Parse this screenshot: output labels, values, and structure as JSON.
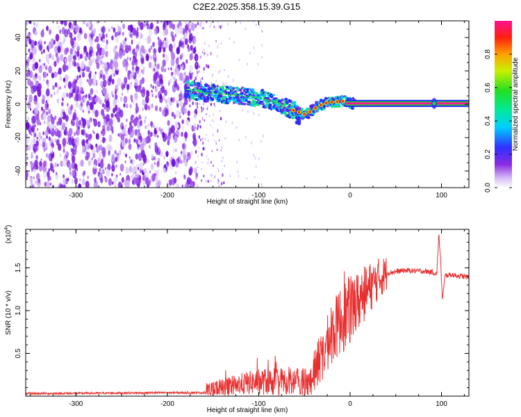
{
  "title": "C2E2.2025.358.15.39.G15",
  "chart_data": [
    {
      "type": "heatmap",
      "xlabel": "Height of straight line (km)",
      "ylabel": "Frequency (Hz)",
      "xlim": [
        -355,
        130
      ],
      "ylim": [
        -50,
        50
      ],
      "xticks": [
        -300,
        -200,
        -100,
        0,
        100
      ],
      "yticks": [
        -40,
        -20,
        0,
        20,
        40
      ],
      "noise_region_x": [
        -355,
        -160
      ],
      "trace": {
        "x": [
          -180,
          -160,
          -140,
          -120,
          -100,
          -80,
          -65,
          -55,
          -50,
          -45,
          -35,
          -25,
          -15,
          -5,
          0,
          50,
          92,
          100,
          130
        ],
        "y": [
          9,
          7,
          6,
          5,
          4,
          1,
          -3,
          -5,
          -6,
          -5,
          -1,
          1,
          1.5,
          2,
          0.5,
          0.5,
          0.5,
          0.5,
          0.5
        ]
      },
      "colorbar": {
        "label": "Normalized spectral amplitude",
        "range": [
          0,
          1
        ],
        "ticks": [
          0.0,
          0.2,
          0.4,
          0.6,
          0.8
        ]
      }
    },
    {
      "type": "line",
      "xlabel": "Height of straight line (km)",
      "ylabel": "SNR (10 * v/v)",
      "scale_label": "(x10",
      "scale_exp": "4",
      "xlim": [
        -355,
        130
      ],
      "ylim": [
        0,
        1.95
      ],
      "xticks": [
        -300,
        -200,
        -100,
        0,
        100
      ],
      "yticks": [
        0.5,
        1.0,
        1.5
      ],
      "ytick_labels": [
        "0.5",
        "1.0",
        "1.5"
      ],
      "color": "#e83030",
      "series": {
        "x": [
          -355,
          -200,
          -160,
          -140,
          -120,
          -100,
          -80,
          -60,
          -45,
          -40,
          -30,
          -20,
          -10,
          0,
          10,
          20,
          30,
          40,
          60,
          80,
          90,
          95,
          97,
          99,
          101,
          104,
          110,
          130
        ],
        "y": [
          0.03,
          0.04,
          0.04,
          0.09,
          0.14,
          0.17,
          0.17,
          0.17,
          0.16,
          0.26,
          0.5,
          0.72,
          0.9,
          1.0,
          1.12,
          1.25,
          1.36,
          1.44,
          1.47,
          1.46,
          1.45,
          1.43,
          1.9,
          1.6,
          1.12,
          1.41,
          1.42,
          1.39
        ]
      }
    }
  ]
}
